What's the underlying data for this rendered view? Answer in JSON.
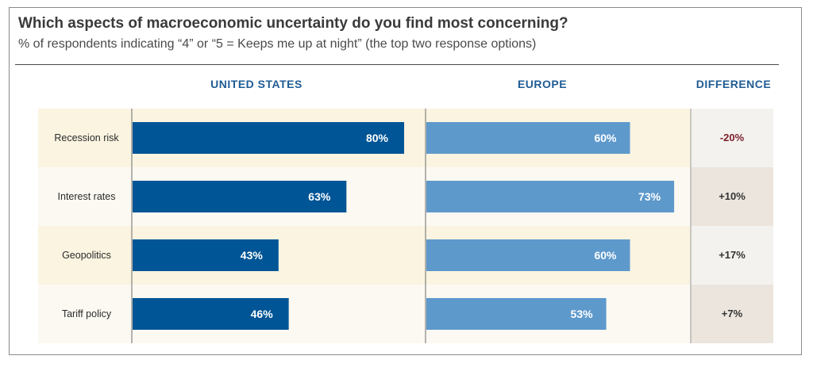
{
  "chart_data": {
    "type": "bar",
    "title": "Which aspects of macroeconomic uncertainty do you find most concerning?",
    "subtitle": "% of respondents indicating “4” or “5 = Keeps me up at night” (the top two response options)",
    "categories": [
      "Recession risk",
      "Interest rates",
      "Geopolitics",
      "Tariff policy"
    ],
    "series": [
      {
        "name": "UNITED STATES",
        "values": [
          80,
          63,
          43,
          46
        ],
        "labels": [
          "80%",
          "63%",
          "43%",
          "46%"
        ],
        "color": "#005596"
      },
      {
        "name": "EUROPE",
        "values": [
          60,
          73,
          60,
          53
        ],
        "labels": [
          "60%",
          "73%",
          "60%",
          "53%"
        ],
        "color": "#5e99cc"
      }
    ],
    "difference": {
      "header": "DIFFERENCE",
      "labels": [
        "-20%",
        "+10%",
        "+17%",
        "+7%"
      ],
      "colors": [
        "#7a1f2b",
        "#333333",
        "#333333",
        "#333333"
      ]
    },
    "xlim": [
      0,
      100
    ],
    "colors": {
      "row_band_a": "#faf4e1",
      "row_band_b": "#fbf9f1",
      "diff_band_a": "#f4f2ef",
      "diff_band_b": "#ebe5dd",
      "header_text": "#1f5c94"
    }
  }
}
